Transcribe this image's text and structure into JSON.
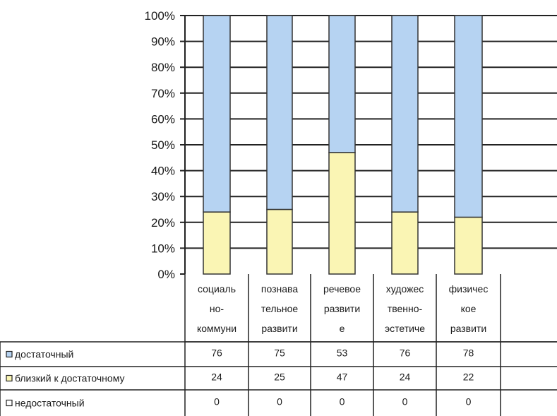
{
  "chart_data": {
    "type": "bar",
    "stacked": true,
    "percent_stacked": true,
    "categories": [
      [
        "социаль",
        "но-",
        "коммуни"
      ],
      [
        "познава",
        "тельное",
        "развити"
      ],
      [
        "речевое",
        "развити",
        "е"
      ],
      [
        "художес",
        "твенно-",
        "эстетиче"
      ],
      [
        "физичес",
        "кое",
        "развити"
      ]
    ],
    "series": [
      {
        "name": "недостаточный",
        "values": [
          0,
          0,
          0,
          0,
          0
        ],
        "color": "#ffffff"
      },
      {
        "name": "близкий к достаточному",
        "values": [
          24,
          25,
          47,
          24,
          22
        ],
        "color": "#faf5b4"
      },
      {
        "name": "достаточный",
        "values": [
          76,
          75,
          53,
          76,
          78
        ],
        "color": "#b6d3f2"
      }
    ],
    "table_rows": [
      "достаточный",
      "близкий к достаточному",
      "недостаточный"
    ],
    "yticks": [
      "0%",
      "10%",
      "20%",
      "30%",
      "40%",
      "50%",
      "60%",
      "70%",
      "80%",
      "90%",
      "100%"
    ],
    "ylim": [
      0,
      100
    ],
    "grid": true,
    "data_table": true,
    "legend_in_table": true,
    "title": "",
    "xlabel": "",
    "ylabel": ""
  }
}
